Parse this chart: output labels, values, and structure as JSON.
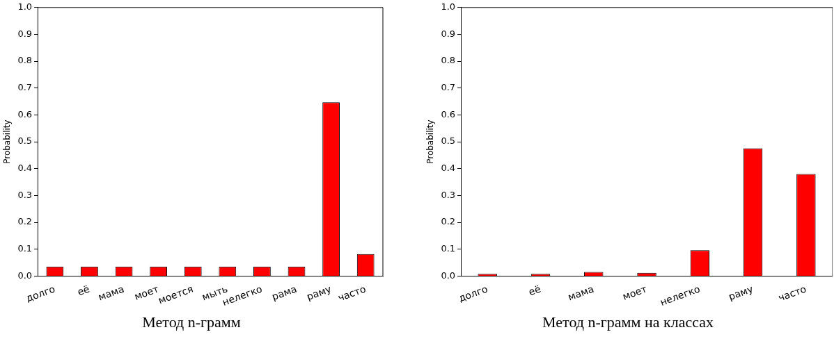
{
  "chart_data": [
    {
      "type": "bar",
      "title": "Метод n-грамм",
      "ylabel": "Probability",
      "categories": [
        "долго",
        "её",
        "мама",
        "моет",
        "моется",
        "мыть",
        "нелегко",
        "рама",
        "раму",
        "часто"
      ],
      "values": [
        0.035,
        0.035,
        0.035,
        0.035,
        0.035,
        0.035,
        0.035,
        0.035,
        0.647,
        0.082
      ],
      "color": "#ff0000",
      "ylim": [
        0,
        1
      ],
      "yticks": [
        {
          "value": 0,
          "label": "0.0"
        },
        {
          "value": 0.1,
          "label": "0.1"
        },
        {
          "value": 0.2,
          "label": "0.2"
        },
        {
          "value": 0.3,
          "label": "0.3"
        },
        {
          "value": 0.4,
          "label": "0.4"
        },
        {
          "value": 0.5,
          "label": "0.5"
        },
        {
          "value": 0.6,
          "label": "0.6"
        },
        {
          "value": 0.7,
          "label": "0.7"
        },
        {
          "value": 0.8,
          "label": "0.8"
        },
        {
          "value": 0.9,
          "label": "0.9"
        },
        {
          "value": 1,
          "label": "1.0"
        }
      ],
      "grid": false,
      "legend": false
    },
    {
      "type": "bar",
      "title": "Метод n-грамм на классах",
      "ylabel": "Probability",
      "categories": [
        "долго",
        "её",
        "мама",
        "моет",
        "нелегко",
        "раму",
        "часто"
      ],
      "values": [
        0.008,
        0.008,
        0.015,
        0.012,
        0.096,
        0.476,
        0.38
      ],
      "color": "#ff0000",
      "ylim": [
        0,
        1
      ],
      "yticks": [
        {
          "value": 0,
          "label": "0.0"
        },
        {
          "value": 0.1,
          "label": "0.1"
        },
        {
          "value": 0.2,
          "label": "0.2"
        },
        {
          "value": 0.3,
          "label": "0.3"
        },
        {
          "value": 0.4,
          "label": "0.4"
        },
        {
          "value": 0.5,
          "label": "0.5"
        },
        {
          "value": 0.6,
          "label": "0.6"
        },
        {
          "value": 0.7,
          "label": "0.7"
        },
        {
          "value": 0.8,
          "label": "0.8"
        },
        {
          "value": 0.9,
          "label": "0.9"
        },
        {
          "value": 1,
          "label": "1.0"
        }
      ],
      "grid": false,
      "legend": false
    }
  ]
}
